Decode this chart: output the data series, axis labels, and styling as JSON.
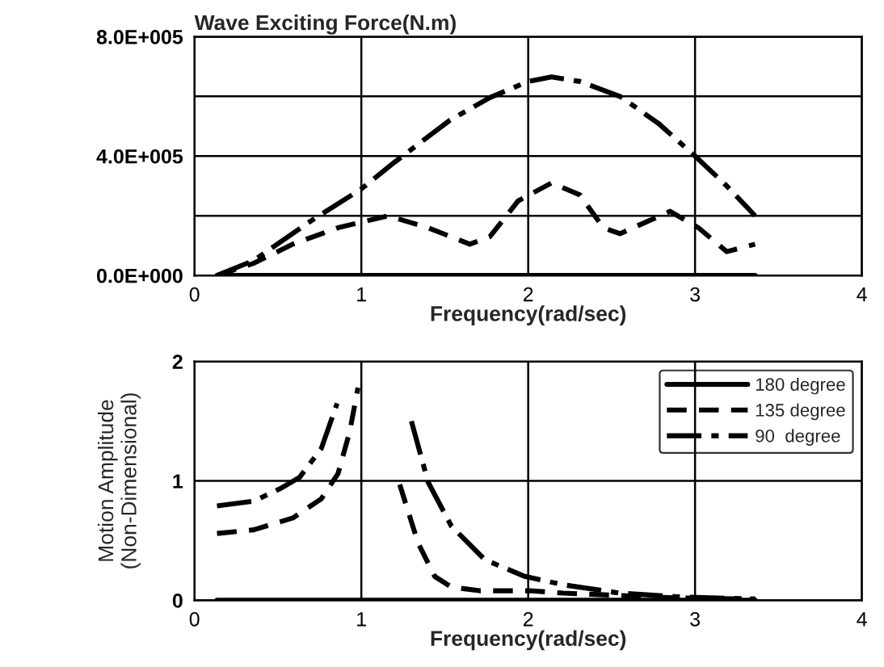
{
  "chart_data": [
    {
      "type": "line",
      "title": "Wave Exciting Force(N.m)",
      "xlabel": "Frequency(rad/sec)",
      "xlim": [
        0,
        4
      ],
      "xticks": [
        0,
        1,
        2,
        3,
        4
      ],
      "ylim": [
        0,
        800000
      ],
      "yticks": [
        {
          "value": 0,
          "label": "0.0E+000"
        },
        {
          "value": 200000,
          "label": null
        },
        {
          "value": 400000,
          "label": "4.0E+005"
        },
        {
          "value": 600000,
          "label": null
        },
        {
          "value": 800000,
          "label": "8.0E+005"
        }
      ],
      "grid": true,
      "legend": false,
      "series": [
        {
          "color": "#000000",
          "line_style": "solid",
          "x": [
            0.135,
            3.36
          ],
          "values": [
            0,
            0
          ]
        },
        {
          "color": "#000000",
          "line_style": "dashed",
          "x": [
            0.135,
            0.35,
            0.59,
            0.86,
            1.16,
            1.4,
            1.65,
            1.77,
            1.94,
            2.14,
            2.31,
            2.45,
            2.55,
            2.71,
            2.85,
            3.02,
            3.19,
            3.36
          ],
          "values": [
            0,
            40000,
            105000,
            160000,
            200000,
            160000,
            105000,
            130000,
            250000,
            310000,
            270000,
            160000,
            140000,
            180000,
            215000,
            160000,
            80000,
            105000
          ]
        },
        {
          "color": "#000000",
          "line_style": "dashdot",
          "x": [
            0.135,
            0.354,
            0.69,
            1.0,
            1.2,
            1.53,
            1.77,
            2.0,
            2.14,
            2.31,
            2.55,
            2.78,
            3.0,
            3.19,
            3.36
          ],
          "values": [
            0,
            50000,
            180000,
            290000,
            380000,
            520000,
            596000,
            650000,
            665000,
            650000,
            600000,
            510000,
            400000,
            300000,
            200000
          ]
        }
      ]
    },
    {
      "type": "line",
      "xlabel": "Frequency(rad/sec)",
      "ylabel": "Motion Amplitude\n(Non-Dimensional)",
      "xlim": [
        0,
        4
      ],
      "xticks": [
        0,
        1,
        2,
        3,
        4
      ],
      "ylim": [
        0,
        2
      ],
      "yticks": [
        0,
        1,
        2
      ],
      "grid": true,
      "legend": "top right",
      "series": [
        {
          "name": "180 degree",
          "color": "#000000",
          "line_style": "solid",
          "x": [
            0.135,
            3.36
          ],
          "values": [
            0,
            0
          ]
        },
        {
          "name": "135 degree",
          "color": "#000000",
          "line_style": "dashed",
          "x": [
            0.135,
            0.355,
            0.59,
            0.76,
            0.86,
            0.93,
            0.98,
            1.1,
            1.23,
            1.34,
            1.44,
            1.54,
            1.71,
            2.01,
            2.21,
            2.55,
            2.89,
            3.36
          ],
          "values": [
            0.56,
            0.59,
            0.69,
            0.85,
            1.06,
            1.41,
            1.78,
            null,
            0.97,
            0.48,
            0.2,
            0.11,
            0.08,
            0.08,
            0.06,
            0.04,
            0.02,
            0.01
          ]
        },
        {
          "name": "90  degree",
          "color": "#000000",
          "line_style": "dashdot",
          "x": [
            0.135,
            0.355,
            0.52,
            0.63,
            0.76,
            0.855,
            1.1,
            1.3,
            1.4,
            1.54,
            1.74,
            1.98,
            2.21,
            2.55,
            2.89,
            3.36
          ],
          "values": [
            0.79,
            0.83,
            0.94,
            1.03,
            1.27,
            1.65,
            null,
            1.5,
            0.99,
            0.62,
            0.34,
            0.2,
            0.13,
            0.06,
            0.03,
            0.01
          ]
        }
      ]
    }
  ]
}
